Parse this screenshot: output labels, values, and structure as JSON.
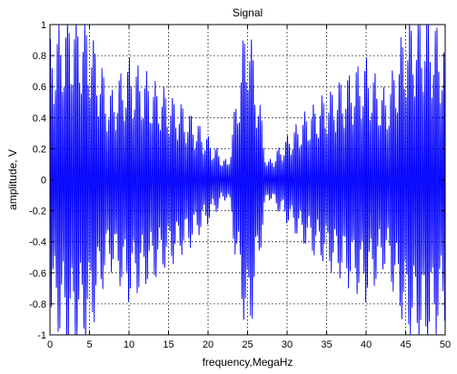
{
  "chart_data": {
    "type": "line",
    "title": "Signal",
    "xlabel": "frequency,MegaHz",
    "ylabel": "amplitude, V",
    "xlim": [
      0,
      50
    ],
    "ylim": [
      -1,
      1
    ],
    "x_ticks": [
      0,
      5,
      10,
      15,
      20,
      25,
      30,
      35,
      40,
      45,
      50
    ],
    "y_ticks": [
      -1,
      -0.8,
      -0.6,
      -0.4,
      -0.2,
      0,
      0.2,
      0.4,
      0.6,
      0.8,
      1
    ],
    "x_tick_labels": [
      "0",
      "5",
      "10",
      "15",
      "20",
      "25",
      "30",
      "35",
      "40",
      "45",
      "50"
    ],
    "y_tick_labels": [
      "-1",
      "-0.8",
      "-0.6",
      "-0.4",
      "-0.2",
      "0",
      "0.2",
      "0.4",
      "0.6",
      "0.8",
      "1"
    ],
    "grid": true,
    "grid_style": "dotted",
    "series": [
      {
        "color": "#0000ff",
        "description_points": {
          "x": [
            0,
            2.5,
            5,
            7.5,
            10,
            12.5,
            15,
            17.5,
            20,
            22.5,
            25,
            27.5,
            30,
            32.5,
            35,
            37.5,
            40,
            42.5,
            45,
            47.5,
            50
          ],
          "envelope": [
            0.8,
            1.0,
            0.9,
            0.5,
            0.7,
            0.6,
            0.5,
            0.4,
            0.25,
            0.1,
            1.0,
            0.1,
            0.25,
            0.4,
            0.5,
            0.6,
            0.7,
            0.5,
            0.9,
            1.0,
            0.8
          ]
        }
      }
    ]
  }
}
